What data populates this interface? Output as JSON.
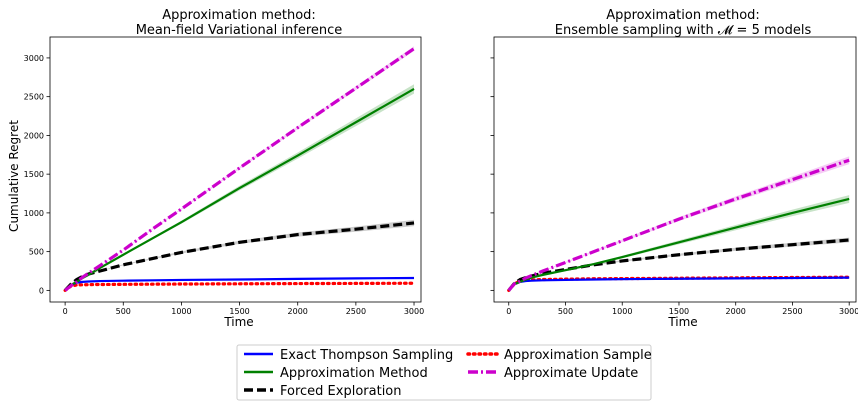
{
  "legend": {
    "items": [
      "Exact Thompson Sampling",
      "Approximation Method",
      "Forced Exploration",
      "Approximation Sample",
      "Approximate Update"
    ]
  },
  "colors": {
    "exact": "#0000ff",
    "method": "#008000",
    "forced": "#000000",
    "sample": "#ff0000",
    "update": "#cc00cc"
  },
  "chart_data": [
    {
      "type": "line",
      "title": "Approximation method:",
      "subtitle": "Mean-field Variational inference",
      "xlabel": "Time",
      "ylabel": "Cumulative Regret",
      "xlim": [
        -130,
        3060
      ],
      "ylim": [
        -150,
        3270
      ],
      "xticks": [
        0,
        500,
        1000,
        1500,
        2000,
        2500,
        3000
      ],
      "yticks": [
        0,
        500,
        1000,
        1500,
        2000,
        2500,
        3000
      ],
      "grid": false,
      "x": [
        0,
        50,
        100,
        150,
        200,
        300,
        500,
        750,
        1000,
        1500,
        2000,
        2500,
        3000
      ],
      "series": [
        {
          "name": "Exact Thompson Sampling",
          "values": [
            0,
            70,
            100,
            110,
            115,
            120,
            125,
            130,
            135,
            140,
            148,
            155,
            160
          ]
        },
        {
          "name": "Approximation Method",
          "values": [
            0,
            70,
            110,
            160,
            200,
            290,
            460,
            670,
            880,
            1320,
            1740,
            2170,
            2600
          ],
          "band": 60
        },
        {
          "name": "Forced Exploration",
          "values": [
            0,
            80,
            140,
            180,
            210,
            250,
            330,
            410,
            490,
            620,
            720,
            790,
            870
          ],
          "band": 40
        },
        {
          "name": "Approximation Sample",
          "values": [
            0,
            55,
            70,
            72,
            74,
            76,
            78,
            80,
            82,
            85,
            88,
            90,
            92
          ]
        },
        {
          "name": "Approximate Update",
          "values": [
            0,
            60,
            110,
            170,
            220,
            320,
            520,
            790,
            1050,
            1580,
            2100,
            2610,
            3120
          ],
          "band": 30
        }
      ]
    },
    {
      "type": "line",
      "title": "Approximation method:",
      "subtitle": "Ensemble sampling with 𝓜 = 5 models",
      "xlabel": "Time",
      "ylabel": "",
      "xlim": [
        -130,
        3060
      ],
      "ylim": [
        -150,
        3270
      ],
      "xticks": [
        0,
        500,
        1000,
        1500,
        2000,
        2500,
        3000
      ],
      "yticks": [
        0,
        500,
        1000,
        1500,
        2000,
        2500,
        3000
      ],
      "grid": false,
      "x": [
        0,
        50,
        100,
        150,
        200,
        300,
        500,
        750,
        1000,
        1500,
        2000,
        2500,
        3000
      ],
      "series": [
        {
          "name": "Exact Thompson Sampling",
          "values": [
            0,
            80,
            110,
            120,
            125,
            130,
            135,
            140,
            145,
            150,
            155,
            160,
            165
          ]
        },
        {
          "name": "Approximation Method",
          "values": [
            0,
            80,
            110,
            140,
            165,
            200,
            260,
            340,
            430,
            620,
            810,
            1000,
            1180
          ],
          "band": 50
        },
        {
          "name": "Forced Exploration",
          "values": [
            0,
            90,
            140,
            165,
            185,
            220,
            270,
            330,
            380,
            460,
            530,
            590,
            650
          ],
          "band": 30
        },
        {
          "name": "Approximation Sample",
          "values": [
            0,
            85,
            120,
            130,
            135,
            140,
            145,
            150,
            152,
            157,
            162,
            166,
            170
          ]
        },
        {
          "name": "Approximate Update",
          "values": [
            0,
            85,
            120,
            160,
            190,
            250,
            360,
            500,
            640,
            920,
            1180,
            1430,
            1680
          ],
          "band": 50
        }
      ]
    }
  ]
}
